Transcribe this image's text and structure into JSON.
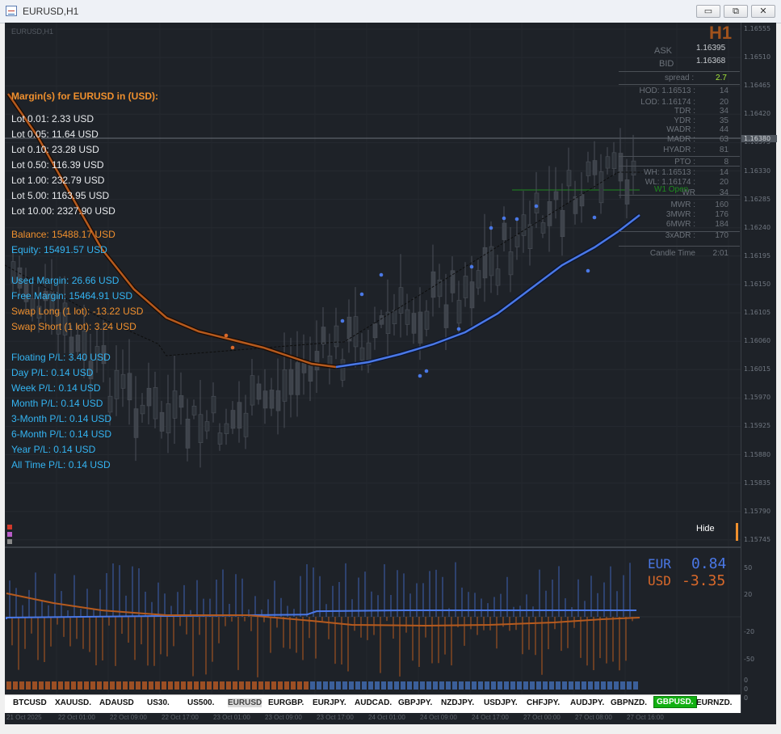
{
  "window": {
    "title": "EURUSD,H1",
    "minimize": "▭",
    "restore": "⧉",
    "close": "✕"
  },
  "chart": {
    "symbol_label": "EURUSD,H1",
    "timeframe_badge": "H1",
    "current_price_tag": "1.16380",
    "price_ticks": [
      "1.16555",
      "1.16510",
      "1.16465",
      "1.16420",
      "1.16375",
      "1.16330",
      "1.16285",
      "1.16240",
      "1.16195",
      "1.16150",
      "1.16105",
      "1.16060",
      "1.16015",
      "1.15970",
      "1.15925",
      "1.15880",
      "1.15835",
      "1.15790",
      "1.15745"
    ],
    "osc_ticks": [
      "50",
      "20",
      "-20",
      "-50",
      "0",
      "0",
      "0"
    ],
    "hide_label": "Hide"
  },
  "margins": {
    "heading": "Margin(s) for EURUSD in (USD):",
    "lots": [
      "Lot 0.01: 2.33 USD",
      "Lot 0.05: 11.64 USD",
      "Lot 0.10: 23.28 USD",
      "Lot 0.50: 116.39 USD",
      "Lot 1.00: 232.79 USD",
      "Lot 5.00: 1163.95 USD",
      "Lot 10.00: 2327.90 USD"
    ],
    "balance": "Balance: 15488.17 USD",
    "equity": "Equity: 15491.57 USD",
    "used_margin": "Used Margin: 26.66 USD",
    "free_margin": "Free Margin: 15464.91 USD",
    "swap_long": "Swap Long (1 lot): -13.22 USD",
    "swap_short": "Swap Short (1 lot): 3.24 USD",
    "pl": [
      "Floating P/L: 3.40 USD",
      "Day P/L: 0.14 USD",
      "Week P/L: 0.14 USD",
      "Month P/L: 0.14 USD",
      "3-Month P/L: 0.14 USD",
      "6-Month P/L: 0.14 USD",
      "Year P/L: 0.14 USD",
      "All Time P/L: 0.14 USD"
    ]
  },
  "stats": {
    "ask_label": "ASK",
    "ask": "1.16395",
    "bid_label": "BID",
    "bid": "1.16368",
    "spread_label": "spread :",
    "spread": "2.7",
    "rows": [
      {
        "label": "HOD: 1.16513 :",
        "value": "14"
      },
      {
        "label": "LOD: 1.16174 :",
        "value": "20"
      },
      {
        "label": "TDR :",
        "value": "34"
      },
      {
        "label": "YDR :",
        "value": "35"
      },
      {
        "label": "WADR :",
        "value": "44"
      },
      {
        "label": "MADR :",
        "value": "63"
      },
      {
        "label": "HYADR :",
        "value": "81"
      },
      {
        "label": "PTO :",
        "value": "8"
      },
      {
        "label": "WH: 1.16513 :",
        "value": "14"
      },
      {
        "label": "WL: 1.16174 :",
        "value": "20"
      },
      {
        "label": "WR",
        "value": "34"
      },
      {
        "label": "MWR :",
        "value": "160"
      },
      {
        "label": "3MWR :",
        "value": "176"
      },
      {
        "label": "6MWR :",
        "value": "184"
      },
      {
        "label": "3xADR :",
        "value": "170"
      },
      {
        "label": "Candle Time",
        "value": "2:01"
      }
    ],
    "w1_open": "W1 Open"
  },
  "strength": {
    "eur_label": "EUR",
    "eur_value": "0.84",
    "usd_label": "USD",
    "usd_value": "-3.35",
    "eur_color": "#4a78e6",
    "usd_color": "#d9692a"
  },
  "symbols": [
    {
      "label": "BTCUSD",
      "state": "normal"
    },
    {
      "label": "XAUUSD.",
      "state": "normal"
    },
    {
      "label": "ADAUSD",
      "state": "normal"
    },
    {
      "label": "US30.",
      "state": "normal"
    },
    {
      "label": "US500.",
      "state": "normal"
    },
    {
      "label": "EURUSD",
      "state": "dim"
    },
    {
      "label": "EURGBP.",
      "state": "normal"
    },
    {
      "label": "EURJPY.",
      "state": "normal"
    },
    {
      "label": "AUDCAD.",
      "state": "normal"
    },
    {
      "label": "GBPJPY.",
      "state": "normal"
    },
    {
      "label": "NZDJPY.",
      "state": "normal"
    },
    {
      "label": "USDJPY.",
      "state": "normal"
    },
    {
      "label": "CHFJPY.",
      "state": "normal"
    },
    {
      "label": "AUDJPY.",
      "state": "normal"
    },
    {
      "label": "GBPNZD.",
      "state": "normal"
    },
    {
      "label": "GBPUSD.",
      "state": "active"
    },
    {
      "label": "EURNZD.",
      "state": "normal"
    }
  ],
  "time_axis": [
    "21 Oct 2025",
    "22 Oct 01:00",
    "22 Oct 09:00",
    "22 Oct 17:00",
    "23 Oct 01:00",
    "23 Oct 09:00",
    "23 Oct 17:00",
    "24 Oct 01:00",
    "24 Oct 09:00",
    "24 Oct 17:00",
    "27 Oct 00:00",
    "27 Oct 08:00",
    "27 Oct 16:00"
  ],
  "colors": {
    "bg": "#1e2228",
    "ma_orange": "#b55a1e",
    "ma_blue": "#4a78e6",
    "margin_orange": "#f0902e",
    "margin_blue": "#34b4f2",
    "active_symbol": "#12b012"
  }
}
